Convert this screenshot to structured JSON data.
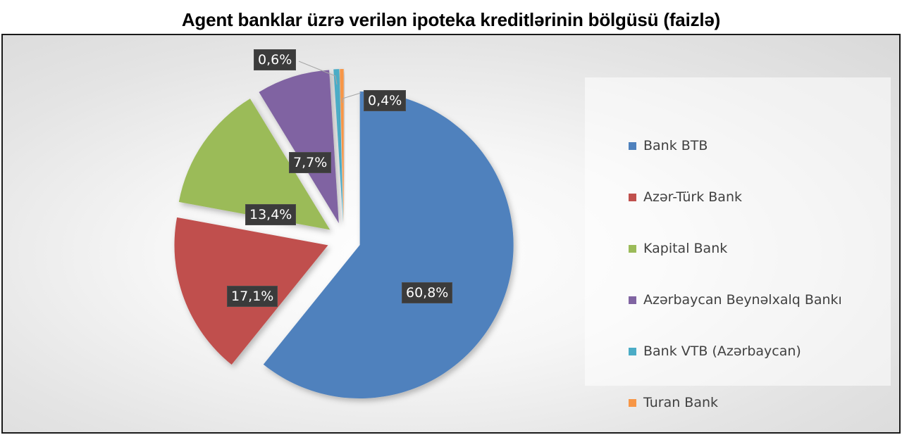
{
  "title": "Agent banklar üzrə verilən ipoteka kreditlərinin bölgüsü (faizlə)",
  "chart_data": {
    "type": "pie",
    "title": "Agent banklar üzrə verilən ipoteka kreditlərinin bölgüsü (faizlə)",
    "categories": [
      "Bank BTB",
      "Azər-Türk Bank",
      "Kapital Bank",
      "Azərbaycan Beynəlxalq Bankı",
      "Bank VTB (Azərbaycan)",
      "Turan Bank"
    ],
    "values": [
      60.8,
      17.1,
      13.4,
      7.7,
      0.6,
      0.4
    ],
    "labels": [
      "60,8%",
      "17,1%",
      "13,4%",
      "7,7%",
      "0,6%",
      "0,4%"
    ],
    "colors": [
      "#4f81bd",
      "#c0504d",
      "#9bbb59",
      "#8064a2",
      "#4bacc6",
      "#f79646"
    ],
    "exploded": true,
    "legend_position": "right"
  }
}
